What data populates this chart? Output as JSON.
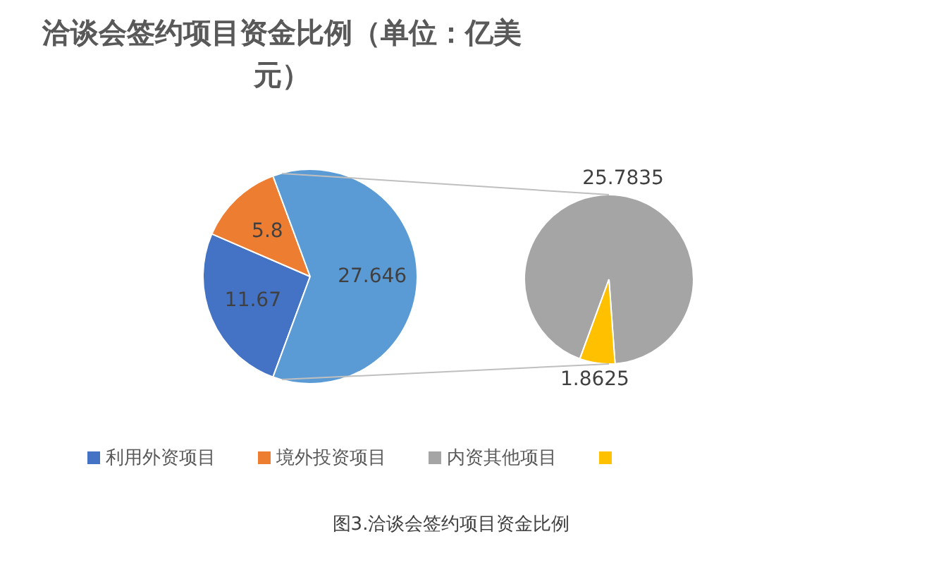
{
  "chart_data": [
    {
      "type": "pie",
      "title": "洽谈会签约项目资金比例（单位：亿美元）",
      "categories": [
        "利用外资项目",
        "境外投资项目",
        null
      ],
      "values": [
        11.67,
        5.8,
        27.646
      ],
      "colors": [
        "#4472c4",
        "#ed7d31",
        "#5b9bd5"
      ],
      "data_labels": true,
      "legend": "bottom",
      "annotations": [
        "图3.洽谈会签约项目资金比例"
      ]
    },
    {
      "type": "pie",
      "categories": [
        "内资其他项目",
        null
      ],
      "values": [
        25.7835,
        1.8625
      ],
      "colors": [
        "#a5a5a5",
        "#ffc000"
      ],
      "data_labels": true,
      "legend": "bottom"
    }
  ]
}
